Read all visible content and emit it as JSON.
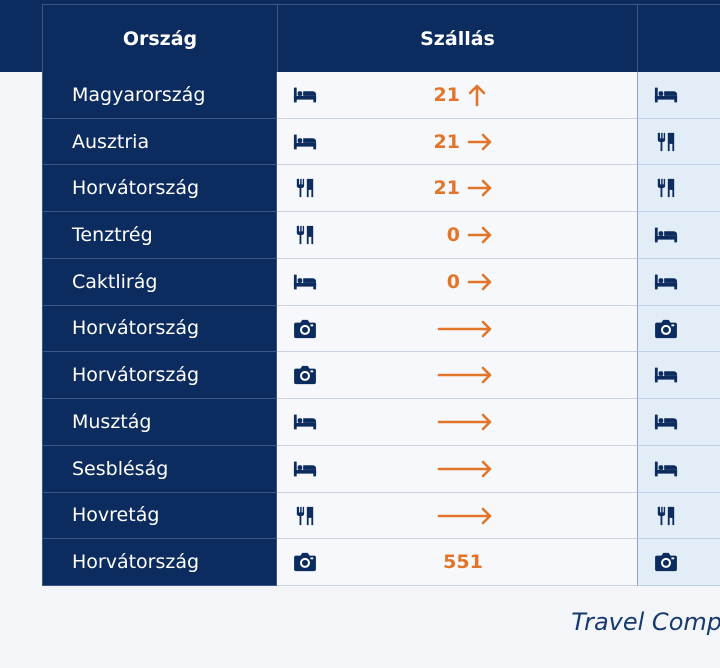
{
  "header": {
    "columns": [
      "Ország",
      "Szállás"
    ]
  },
  "table": {
    "rows": [
      [
        "Magyarország",
        "21"
      ],
      [
        "Ausztria",
        "21"
      ],
      [
        "Horvátország",
        "21"
      ],
      [
        "Tenztrég",
        "0"
      ],
      [
        "Caktlirág",
        "0"
      ],
      [
        "Horvátország"
      ],
      [
        "Horvátország"
      ],
      [
        "Musztág"
      ],
      [
        "Sesbléság"
      ],
      [
        "Hovretág"
      ],
      [
        "Horvátország",
        "551"
      ]
    ]
  },
  "footer": {
    "text": "Travel Comp"
  }
}
